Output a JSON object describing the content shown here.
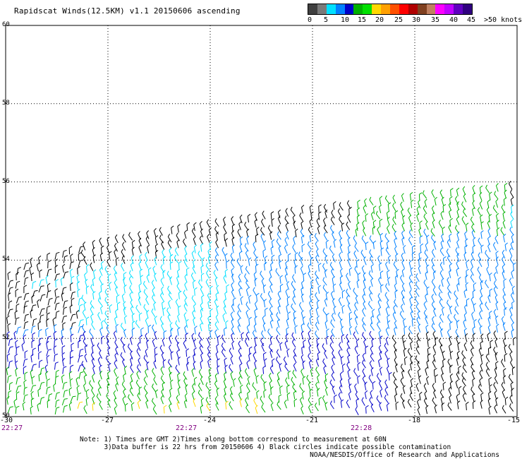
{
  "title": "Rapidscat Winds(12.5KM) v1.1 20150606 ascending",
  "scale": {
    "colors": [
      "#404040",
      "#7a7a7a",
      "#00e0ff",
      "#0080ff",
      "#0000c8",
      "#00b000",
      "#00e000",
      "#ffd800",
      "#ffa000",
      "#ff5000",
      "#ff0000",
      "#b00000",
      "#804020",
      "#c08060",
      "#ff00ff",
      "#c000ff",
      "#6000c0",
      "#300080"
    ],
    "labels": [
      "0",
      "5",
      "10",
      "15",
      "20",
      "25",
      "30",
      "35",
      "40",
      "45",
      ">50 knots"
    ]
  },
  "lat_labels": [
    "60",
    "58",
    "56",
    "54",
    "52",
    "50"
  ],
  "lon_labels": [
    "-30",
    "-27",
    "-24",
    "-21",
    "-18",
    "-15"
  ],
  "time_labels": [
    "22:27",
    "22:27",
    "22:28"
  ],
  "notes": [
    "Note: 1) Times are GMT 2)Times along bottom correspond to measurement at 60N",
    "      3)Data buffer is 22 hrs from 20150606 4) Black circles indicate possible contamination"
  ],
  "credit": "NOAA/NESDIS/Office of Research and Applications",
  "wind_colors": {
    "calm": "#000000",
    "light": "#00e0ff",
    "moderate": "#0080ff",
    "fresh": "#0000c8",
    "strong": "#00b000",
    "yellow": "#ffd800"
  }
}
